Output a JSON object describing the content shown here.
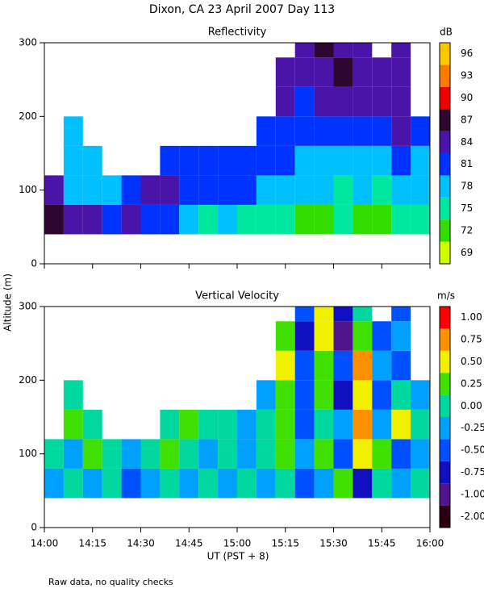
{
  "title": "Dixon, CA 23 April 2007  Day 113",
  "y_label": "Altitude (m)",
  "x_label": "UT  (PST + 8)",
  "note": "Raw data, no quality checks",
  "chart_data": [
    {
      "type": "heatmap",
      "title": "Reflectivity",
      "x_bins": [
        14.0,
        14.1,
        14.2,
        14.3,
        14.4,
        14.5,
        14.6,
        14.7,
        14.8,
        14.9,
        15.0,
        15.1,
        15.2,
        15.3,
        15.4,
        15.5,
        15.6,
        15.7,
        15.8,
        15.9,
        16.0
      ],
      "y_bins": [
        40,
        80,
        120,
        160,
        200,
        240,
        280,
        300
      ],
      "values": [
        [
          87,
          84,
          84,
          81,
          84,
          81,
          81,
          78,
          75,
          78,
          75,
          75,
          75,
          72,
          72,
          75,
          72,
          72,
          75,
          75
        ],
        [
          84,
          78,
          78,
          78,
          81,
          84,
          84,
          81,
          81,
          81,
          81,
          78,
          78,
          78,
          78,
          75,
          78,
          75,
          78,
          78
        ],
        [
          null,
          78,
          78,
          null,
          null,
          null,
          81,
          81,
          81,
          81,
          81,
          81,
          81,
          78,
          78,
          78,
          78,
          78,
          81,
          78
        ],
        [
          null,
          78,
          null,
          null,
          null,
          null,
          null,
          null,
          null,
          null,
          null,
          81,
          81,
          81,
          81,
          81,
          81,
          81,
          84,
          81
        ],
        [
          null,
          null,
          null,
          null,
          null,
          null,
          null,
          null,
          null,
          null,
          null,
          null,
          84,
          81,
          84,
          84,
          84,
          84,
          84,
          null
        ],
        [
          null,
          null,
          null,
          null,
          null,
          null,
          null,
          null,
          null,
          null,
          null,
          null,
          84,
          84,
          84,
          87,
          84,
          84,
          84,
          null
        ],
        [
          null,
          null,
          null,
          null,
          null,
          null,
          null,
          null,
          null,
          null,
          null,
          null,
          null,
          84,
          87,
          84,
          84,
          null,
          84,
          null
        ]
      ],
      "ylim": [
        0,
        300
      ],
      "yticks": [
        0,
        100,
        200,
        300
      ],
      "colorbar": {
        "label": "dB",
        "ticks": [
          69,
          72,
          75,
          78,
          81,
          84,
          87,
          90,
          93,
          96
        ],
        "colors": [
          "#ccff00",
          "#33dd00",
          "#00e8a0",
          "#00c0ff",
          "#0033ff",
          "#4a14a8",
          "#2e0630",
          "#ee0000",
          "#ff7a00",
          "#ffc800"
        ]
      }
    },
    {
      "type": "heatmap",
      "title": "Vertical Velocity",
      "x_bins": [
        14.0,
        14.1,
        14.2,
        14.3,
        14.4,
        14.5,
        14.6,
        14.7,
        14.8,
        14.9,
        15.0,
        15.1,
        15.2,
        15.3,
        15.4,
        15.5,
        15.6,
        15.7,
        15.8,
        15.9,
        16.0
      ],
      "y_bins": [
        40,
        80,
        120,
        160,
        200,
        240,
        280,
        300
      ],
      "values": [
        [
          -0.25,
          0,
          -0.25,
          0,
          -0.5,
          -0.25,
          0,
          -0.25,
          0,
          -0.25,
          0,
          -0.25,
          0,
          -0.5,
          -0.25,
          0.25,
          -0.75,
          0,
          -0.25,
          0
        ],
        [
          0,
          -0.25,
          0.25,
          0,
          -0.25,
          0,
          0.25,
          0,
          -0.25,
          0,
          -0.25,
          0,
          0.25,
          -0.25,
          0.25,
          -0.5,
          0.5,
          0.25,
          -0.5,
          -0.25
        ],
        [
          null,
          0.25,
          0,
          null,
          null,
          null,
          0,
          0.25,
          0,
          0,
          -0.25,
          0,
          0.25,
          -0.5,
          0,
          -0.25,
          0.75,
          -0.25,
          0.5,
          0
        ],
        [
          null,
          0,
          null,
          null,
          null,
          null,
          null,
          null,
          null,
          null,
          null,
          -0.25,
          0.25,
          -0.5,
          0.25,
          -0.75,
          0.5,
          -0.5,
          0,
          -0.25
        ],
        [
          null,
          null,
          null,
          null,
          null,
          null,
          null,
          null,
          null,
          null,
          null,
          null,
          0.5,
          -0.5,
          0.25,
          -0.5,
          0.75,
          -0.25,
          -0.5,
          null
        ],
        [
          null,
          null,
          null,
          null,
          null,
          null,
          null,
          null,
          null,
          null,
          null,
          null,
          0.25,
          -0.75,
          0.5,
          -1.0,
          0.25,
          -0.5,
          -0.25,
          null
        ],
        [
          null,
          null,
          null,
          null,
          null,
          null,
          null,
          null,
          null,
          null,
          null,
          null,
          null,
          -0.5,
          0.5,
          -0.75,
          0,
          null,
          -0.5,
          null
        ]
      ],
      "ylim": [
        0,
        300
      ],
      "yticks": [
        0,
        100,
        200,
        300
      ],
      "xlim": [
        14,
        16
      ],
      "xticks": [
        {
          "value": 14,
          "label": "14:00"
        },
        {
          "value": 14.25,
          "label": "14:15"
        },
        {
          "value": 14.5,
          "label": "14:30"
        },
        {
          "value": 14.75,
          "label": "14:45"
        },
        {
          "value": 15,
          "label": "15:00"
        },
        {
          "value": 15.25,
          "label": "15:15"
        },
        {
          "value": 15.5,
          "label": "15:30"
        },
        {
          "value": 15.75,
          "label": "15:45"
        },
        {
          "value": 16,
          "label": "16:00"
        }
      ],
      "colorbar": {
        "label": "m/s",
        "ticks": [
          {
            "value": -2,
            "label": "-2.00"
          },
          {
            "value": -1,
            "label": "-1.00"
          },
          {
            "value": -0.75,
            "label": "-0.75"
          },
          {
            "value": -0.5,
            "label": "-0.50"
          },
          {
            "value": -0.25,
            "label": "-0.25"
          },
          {
            "value": 0,
            "label": "0.00"
          },
          {
            "value": 0.25,
            "label": "0.25"
          },
          {
            "value": 0.5,
            "label": "0.50"
          },
          {
            "value": 0.75,
            "label": "0.75"
          },
          {
            "value": 1,
            "label": "1.00"
          }
        ],
        "colors": [
          "#2a0010",
          "#50148c",
          "#1010c0",
          "#0050ff",
          "#00a0ff",
          "#00d8a0",
          "#40e000",
          "#f0f000",
          "#ff9000",
          "#ff0000"
        ]
      }
    }
  ]
}
